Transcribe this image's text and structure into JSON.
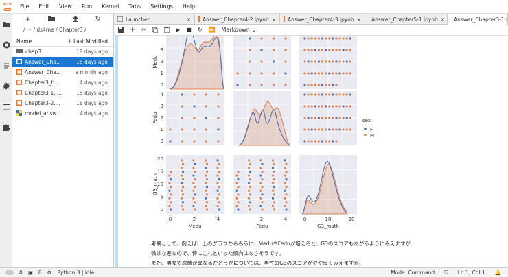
{
  "menu": [
    "File",
    "Edit",
    "View",
    "Run",
    "Kernel",
    "Tabs",
    "Settings",
    "Help"
  ],
  "filebrowser": {
    "breadcrumb": "/ ··· / ds4me / Chapter3 /",
    "col_name": "Name",
    "col_modified": "Last Modified",
    "sort_arrow": "↑",
    "rows": [
      {
        "name": "chap3",
        "modified": "19 days ago",
        "icon": "folder-icon",
        "selected": false
      },
      {
        "name": "Answer_Cha...",
        "modified": "18 days ago",
        "icon": "notebook-icon",
        "selected": true
      },
      {
        "name": "Answer_Cha...",
        "modified": "a month ago",
        "icon": "notebook-icon",
        "selected": false
      },
      {
        "name": "Chapter3_h...",
        "modified": "4 days ago",
        "icon": "notebook-icon",
        "selected": false
      },
      {
        "name": "Chapter3-1.i...",
        "modified": "18 days ago",
        "icon": "notebook-icon",
        "selected": false
      },
      {
        "name": "Chapter3-2....",
        "modified": "18 days ago",
        "icon": "notebook-icon",
        "selected": false
      },
      {
        "name": "model_answ...",
        "modified": "4 days ago",
        "icon": "python-file-icon",
        "selected": false
      }
    ]
  },
  "tabs": [
    {
      "label": "Launcher",
      "active": false
    },
    {
      "label": "Answer_Chapter4-2.ipynb",
      "active": false
    },
    {
      "label": "Answer_Chapter4-3.ipynb",
      "active": false
    },
    {
      "label": "Answer_Chapter5-1.ipynb",
      "active": false
    },
    {
      "label": "Answer_Chapter3-1.ipynb",
      "active": true
    }
  ],
  "toolbar": {
    "cell_type": "Markdown"
  },
  "plot": {
    "row_labels": [
      "Medu",
      "Fedu",
      "G3_math"
    ],
    "col_labels": [
      "Medu",
      "Fedu",
      "G3_math"
    ],
    "medu_ticks": [
      "0",
      "1",
      "2",
      "3",
      "4"
    ],
    "g3_ticks": [
      "0",
      "5",
      "10",
      "15",
      "20"
    ],
    "x_ticks_medu": [
      "0",
      "2",
      "4"
    ],
    "x_ticks_fedu": [
      "2",
      "4"
    ],
    "x_ticks_g3": [
      "0",
      "10",
      "20"
    ],
    "legend_title": "sex",
    "legend_items": [
      {
        "label": "F",
        "color": "#4c72b0"
      },
      {
        "label": "M",
        "color": "#dd8452"
      }
    ]
  },
  "markdown": [
    "考察として、例えば、上のグラフからみるに、MeduやFeduが増えると、G3のスコアもあがるようにみえますが、",
    "微妙な差なので、特にこれといった傾向はなさそうです。",
    "また、男女で成績が異なるかどうかについては、男性のG3のスコアがやや良くみえますが、"
  ],
  "status": {
    "left_zero": "0",
    "cells": "8",
    "kernel": "Python 3 | Idle",
    "mode": "Mode: Command",
    "position": "Ln 1, Col 1"
  },
  "colors": {
    "accent": "#1976d2",
    "female": "#4c72b0",
    "male": "#dd8452",
    "panel_bg": "#eaeaf2"
  }
}
